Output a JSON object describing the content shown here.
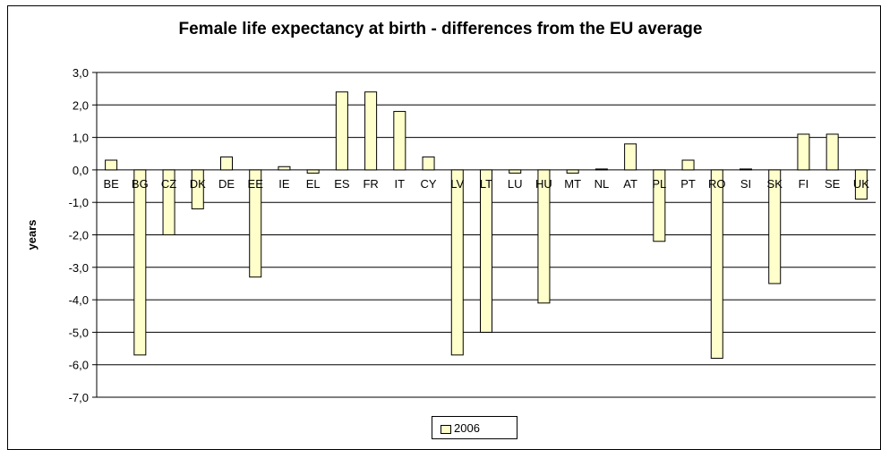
{
  "chart_data": {
    "type": "bar",
    "title": "Female life expectancy at birth - differences from the EU average",
    "xlabel": "",
    "ylabel": "years",
    "ylim": [
      -7.0,
      3.0
    ],
    "yticks": [
      "3,0",
      "2,0",
      "1,0",
      "0,0",
      "-1,0",
      "-2,0",
      "-3,0",
      "-4,0",
      "-5,0",
      "-6,0",
      "-7,0"
    ],
    "grid": true,
    "legend_position": "bottom",
    "categories": [
      "BE",
      "BG",
      "CZ",
      "DK",
      "DE",
      "EE",
      "IE",
      "EL",
      "ES",
      "FR",
      "IT",
      "CY",
      "LV",
      "LT",
      "LU",
      "HU",
      "MT",
      "NL",
      "AT",
      "PL",
      "PT",
      "RO",
      "SI",
      "SK",
      "FI",
      "SE",
      "UK"
    ],
    "series": [
      {
        "name": "2006",
        "color": "#ffffcc",
        "values": [
          0.3,
          -5.7,
          -2.0,
          -1.2,
          0.4,
          -3.3,
          0.1,
          -0.1,
          2.4,
          2.4,
          1.8,
          0.4,
          -5.7,
          -5.0,
          -0.1,
          -4.1,
          -0.1,
          0.0,
          0.8,
          -2.2,
          0.3,
          -5.8,
          0.0,
          -3.5,
          1.1,
          1.1,
          -0.9
        ]
      }
    ]
  }
}
